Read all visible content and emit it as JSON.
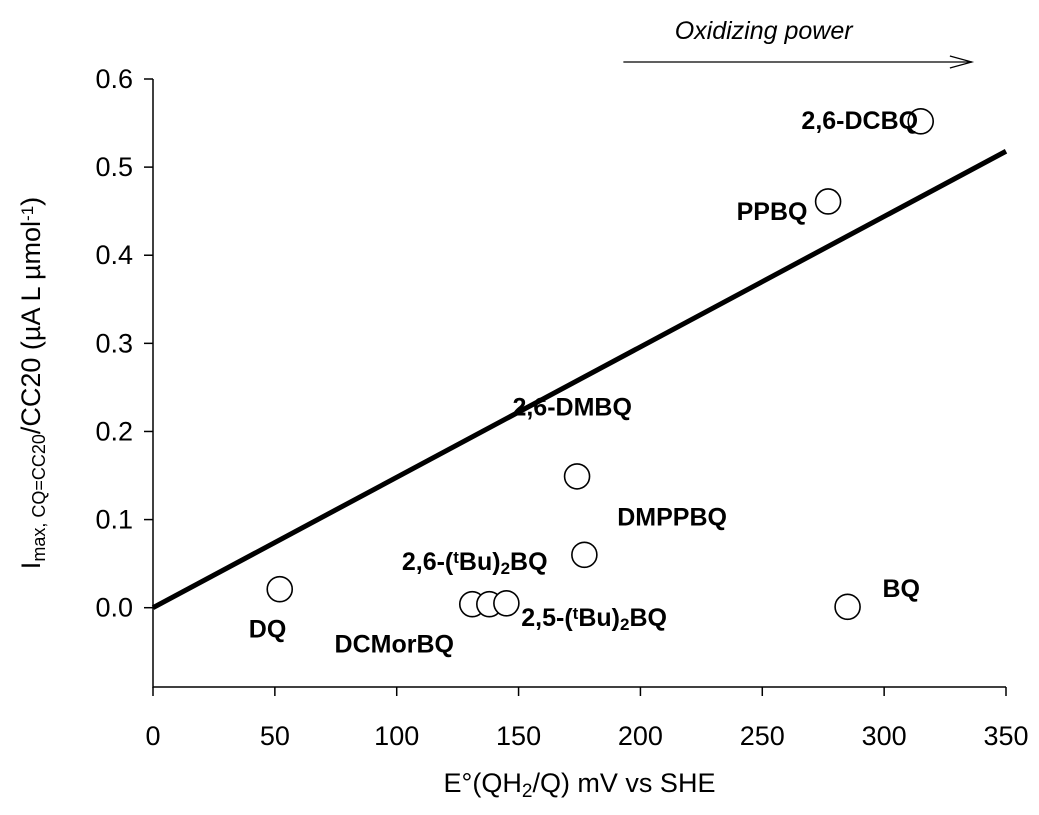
{
  "chart_data": {
    "type": "scatter",
    "title": "",
    "xlabel": {
      "main": "E°(QH",
      "sub": "2",
      "tail": "/Q) mV vs SHE"
    },
    "ylabel": {
      "main": "I",
      "sub": "max, CQ=CC20",
      "mid": "/CC20 (µA L µmol",
      "sup": "-1",
      "tail": ")"
    },
    "xlim": [
      0,
      350
    ],
    "ylim": [
      -0.09,
      0.6
    ],
    "xticks": [
      0,
      50,
      100,
      150,
      200,
      250,
      300,
      350
    ],
    "yticks": [
      0.0,
      0.1,
      0.2,
      0.3,
      0.4,
      0.5,
      0.6
    ],
    "xtick_labels": [
      "0",
      "50",
      "100",
      "150",
      "200",
      "250",
      "300",
      "350"
    ],
    "ytick_labels": [
      "0.0",
      "0.1",
      "0.2",
      "0.3",
      "0.4",
      "0.5",
      "0.6"
    ],
    "grid": false,
    "points": [
      {
        "x": 52,
        "y": 0.021
      },
      {
        "x": 131,
        "y": 0.004
      },
      {
        "x": 138,
        "y": 0.004
      },
      {
        "x": 145,
        "y": 0.005
      },
      {
        "x": 174,
        "y": 0.149
      },
      {
        "x": 177,
        "y": 0.06
      },
      {
        "x": 277,
        "y": 0.461
      },
      {
        "x": 285,
        "y": 0.001
      },
      {
        "x": 315,
        "y": 0.552
      }
    ],
    "point_labels": [
      {
        "text": "DQ",
        "x": 47,
        "y": -0.034
      },
      {
        "text": "DCMorBQ",
        "x": 99,
        "y": -0.051
      },
      {
        "text": "2,6-DMBQ",
        "x": 172,
        "y": 0.218
      },
      {
        "text": "DMPPBQ",
        "x": 213,
        "y": 0.093
      },
      {
        "text": "PPBQ",
        "x": 254,
        "y": 0.44
      },
      {
        "text": "2,6-DCBQ",
        "x": 290,
        "y": 0.543
      },
      {
        "text": "BQ",
        "x": 307,
        "y": 0.012
      }
    ],
    "complex_labels": [
      {
        "pre": "2,6-(",
        "sup": "t",
        "mid": "Bu)",
        "sub": "2",
        "post": "BQ",
        "x": 132,
        "y": 0.043
      },
      {
        "pre": "2,5-(",
        "sup": "t",
        "mid": "Bu)",
        "sub": "2",
        "post": "BQ",
        "x": 181,
        "y": -0.021
      }
    ],
    "line": {
      "x": [
        0,
        350
      ],
      "y": [
        0.0,
        0.518
      ]
    },
    "annotation": {
      "text": "Oxidizing power",
      "x_start": 193,
      "x_end": 336
    }
  }
}
